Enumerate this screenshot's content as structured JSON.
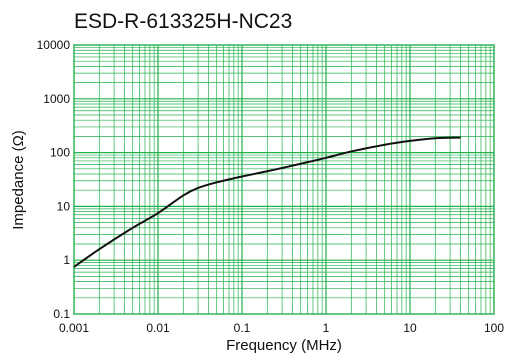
{
  "chart_data": {
    "type": "line",
    "title": "ESD-R-613325H-NC23",
    "xlabel": "Frequency (MHz)",
    "ylabel": "Impedance (Ω)",
    "x_scale": "log",
    "y_scale": "log",
    "xlim": [
      0.001,
      100
    ],
    "ylim": [
      0.1,
      10000
    ],
    "x_ticks": [
      "0.001",
      "0.01",
      "0.1",
      "1",
      "10",
      "100"
    ],
    "y_ticks": [
      "0.1",
      "1",
      "10",
      "100",
      "1000",
      "10000"
    ],
    "grid": true,
    "grid_color": "#22b14c",
    "line_color": "#111111",
    "series": [
      {
        "x": [
          0.001,
          0.002,
          0.005,
          0.01,
          0.02,
          0.03,
          0.05,
          0.1,
          0.2,
          0.5,
          1,
          2,
          5,
          10,
          20,
          40
        ],
        "y": [
          0.75,
          1.6,
          4.0,
          7.5,
          16,
          22,
          28,
          36,
          45,
          62,
          80,
          105,
          140,
          165,
          185,
          190
        ]
      }
    ]
  }
}
